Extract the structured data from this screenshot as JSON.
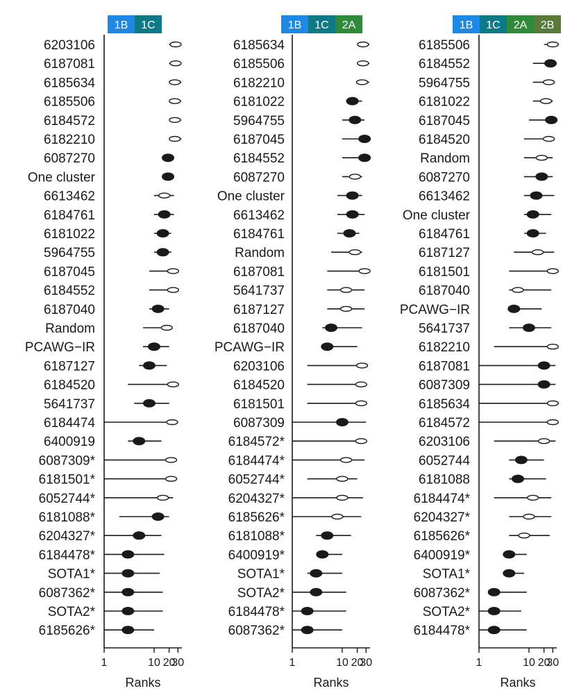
{
  "colors": {
    "1B": "#1e88e5",
    "1C": "#0e7a86",
    "2A": "#2f8a3a",
    "2B": "#5a7a3a",
    "ink": "#1a1a1a"
  },
  "chart_data": [
    {
      "type": "violin",
      "xlabel": "Ranks",
      "xscale": "log",
      "xlim": [
        1,
        36
      ],
      "xticks": [
        "1",
        "10",
        "20",
        "30"
      ],
      "header": [
        "1B",
        "1C"
      ],
      "categories": [
        "6203106",
        "6187081",
        "6185634",
        "6185506",
        "6184572",
        "6182210",
        "6087270",
        "One cluster",
        "6613462",
        "6184761",
        "6181022",
        "5964755",
        "6187045",
        "6184552",
        "6187040",
        "Random",
        "PCAWG−IR",
        "6187127",
        "6184520",
        "5641737",
        "6184474",
        "6400919",
        "6087309*",
        "6181501*",
        "6052744*",
        "6181088*",
        "6204327*",
        "6184478*",
        "SOTA1*",
        "6087362*",
        "SOTA2*",
        "6185626*"
      ],
      "ranges": [
        [
          20,
          35
        ],
        [
          20,
          35
        ],
        [
          20,
          35
        ],
        [
          20,
          35
        ],
        [
          20,
          35
        ],
        [
          20,
          35
        ],
        [
          15,
          25
        ],
        [
          15,
          25
        ],
        [
          10,
          25
        ],
        [
          10,
          25
        ],
        [
          10,
          22
        ],
        [
          10,
          22
        ],
        [
          8,
          28
        ],
        [
          8,
          28
        ],
        [
          8,
          20
        ],
        [
          6,
          22
        ],
        [
          6,
          20
        ],
        [
          5,
          18
        ],
        [
          3,
          28
        ],
        [
          4,
          20
        ],
        [
          1,
          28
        ],
        [
          3,
          14
        ],
        [
          1,
          28
        ],
        [
          1,
          28
        ],
        [
          1,
          24
        ],
        [
          2,
          20
        ],
        [
          1,
          14
        ],
        [
          1,
          16
        ],
        [
          1,
          13
        ],
        [
          1,
          15
        ],
        [
          1,
          15
        ],
        [
          1,
          10
        ]
      ],
      "medians": [
        27,
        27,
        26,
        26,
        26,
        26,
        19,
        19,
        16,
        16,
        15,
        15,
        24,
        24,
        12,
        18,
        10,
        8,
        24,
        8,
        23,
        5,
        22,
        22,
        15,
        12,
        5,
        3,
        3,
        3,
        3,
        3
      ],
      "filled": [
        false,
        false,
        false,
        false,
        false,
        false,
        true,
        true,
        false,
        true,
        true,
        true,
        false,
        false,
        true,
        false,
        true,
        true,
        false,
        true,
        false,
        true,
        false,
        false,
        false,
        true,
        true,
        true,
        true,
        true,
        true,
        true
      ]
    },
    {
      "type": "violin",
      "xlabel": "Ranks",
      "xscale": "log",
      "xlim": [
        1,
        36
      ],
      "xticks": [
        "1",
        "10",
        "20",
        "30"
      ],
      "header": [
        "1B",
        "1C",
        "2A"
      ],
      "categories": [
        "6185634",
        "6185506",
        "6182210",
        "6181022",
        "5964755",
        "6187045",
        "6184552",
        "6087270",
        "One cluster",
        "6613462",
        "6184761",
        "Random",
        "6187081",
        "5641737",
        "6187127",
        "6187040",
        "PCAWG−IR",
        "6203106",
        "6184520",
        "6181501",
        "6087309",
        "6184572*",
        "6184474*",
        "6052744*",
        "6204327*",
        "6185626*",
        "6181088*",
        "6400919*",
        "SOTA1*",
        "SOTA2*",
        "6184478*",
        "6087362*"
      ],
      "ranges": [
        [
          20,
          35
        ],
        [
          20,
          35
        ],
        [
          20,
          35
        ],
        [
          12,
          25
        ],
        [
          10,
          28
        ],
        [
          10,
          30
        ],
        [
          10,
          30
        ],
        [
          10,
          25
        ],
        [
          8,
          25
        ],
        [
          8,
          28
        ],
        [
          8,
          22
        ],
        [
          6,
          25
        ],
        [
          5,
          30
        ],
        [
          5,
          28
        ],
        [
          5,
          28
        ],
        [
          4,
          25
        ],
        [
          4,
          20
        ],
        [
          2,
          30
        ],
        [
          2,
          28
        ],
        [
          2,
          30
        ],
        [
          1,
          30
        ],
        [
          1,
          30
        ],
        [
          1,
          28
        ],
        [
          2,
          20
        ],
        [
          1,
          26
        ],
        [
          1,
          24
        ],
        [
          3,
          15
        ],
        [
          3,
          10
        ],
        [
          2,
          10
        ],
        [
          1,
          12
        ],
        [
          1,
          12
        ],
        [
          1,
          10
        ]
      ],
      "medians": [
        26,
        26,
        25,
        16,
        18,
        28,
        28,
        18,
        16,
        16,
        14,
        18,
        28,
        12,
        12,
        6,
        5,
        25,
        24,
        24,
        10,
        24,
        12,
        10,
        10,
        8,
        5,
        4,
        3,
        3,
        2,
        2
      ],
      "filled": [
        false,
        false,
        false,
        true,
        true,
        true,
        true,
        false,
        true,
        true,
        true,
        false,
        false,
        false,
        false,
        true,
        true,
        false,
        false,
        false,
        true,
        false,
        false,
        false,
        false,
        false,
        true,
        true,
        true,
        true,
        true,
        true
      ]
    },
    {
      "type": "violin",
      "xlabel": "Ranks",
      "xscale": "log",
      "xlim": [
        1,
        36
      ],
      "xticks": [
        "1",
        "10",
        "20",
        "30"
      ],
      "header": [
        "1B",
        "1C",
        "2A",
        "2B"
      ],
      "categories": [
        "6185506",
        "6184552",
        "5964755",
        "6181022",
        "6187045",
        "6184520",
        "Random",
        "6087270",
        "6613462",
        "One cluster",
        "6184761",
        "6187127",
        "6181501",
        "6187040",
        "PCAWG−IR",
        "5641737",
        "6182210",
        "6187081",
        "6087309",
        "6185634",
        "6184572",
        "6203106",
        "6052744",
        "6181088",
        "6184474*",
        "6204327*",
        "6185626*",
        "6400919*",
        "SOTA1*",
        "6087362*",
        "SOTA2*",
        "6184478*"
      ],
      "ranges": [
        [
          20,
          36
        ],
        [
          12,
          33
        ],
        [
          12,
          30
        ],
        [
          12,
          30
        ],
        [
          10,
          32
        ],
        [
          8,
          30
        ],
        [
          8,
          30
        ],
        [
          8,
          30
        ],
        [
          8,
          32
        ],
        [
          8,
          28
        ],
        [
          8,
          22
        ],
        [
          5,
          32
        ],
        [
          4,
          34
        ],
        [
          4,
          28
        ],
        [
          4,
          18
        ],
        [
          4,
          28
        ],
        [
          2,
          34
        ],
        [
          1,
          34
        ],
        [
          1,
          34
        ],
        [
          1,
          34
        ],
        [
          1,
          34
        ],
        [
          2,
          34
        ],
        [
          4,
          20
        ],
        [
          4,
          22
        ],
        [
          2,
          28
        ],
        [
          4,
          28
        ],
        [
          4,
          26
        ],
        [
          3,
          9
        ],
        [
          3,
          8
        ],
        [
          2,
          9
        ],
        [
          1,
          7
        ],
        [
          1,
          9
        ]
      ],
      "medians": [
        30,
        27,
        25,
        22,
        28,
        25,
        18,
        18,
        14,
        12,
        12,
        15,
        30,
        6,
        5,
        10,
        30,
        20,
        20,
        30,
        30,
        20,
        7,
        6,
        12,
        10,
        8,
        4,
        4,
        2,
        2,
        2
      ],
      "filled": [
        false,
        true,
        false,
        false,
        true,
        false,
        false,
        true,
        true,
        true,
        true,
        false,
        false,
        false,
        true,
        true,
        false,
        true,
        true,
        false,
        false,
        false,
        true,
        true,
        false,
        false,
        false,
        true,
        true,
        true,
        true,
        true
      ]
    }
  ]
}
